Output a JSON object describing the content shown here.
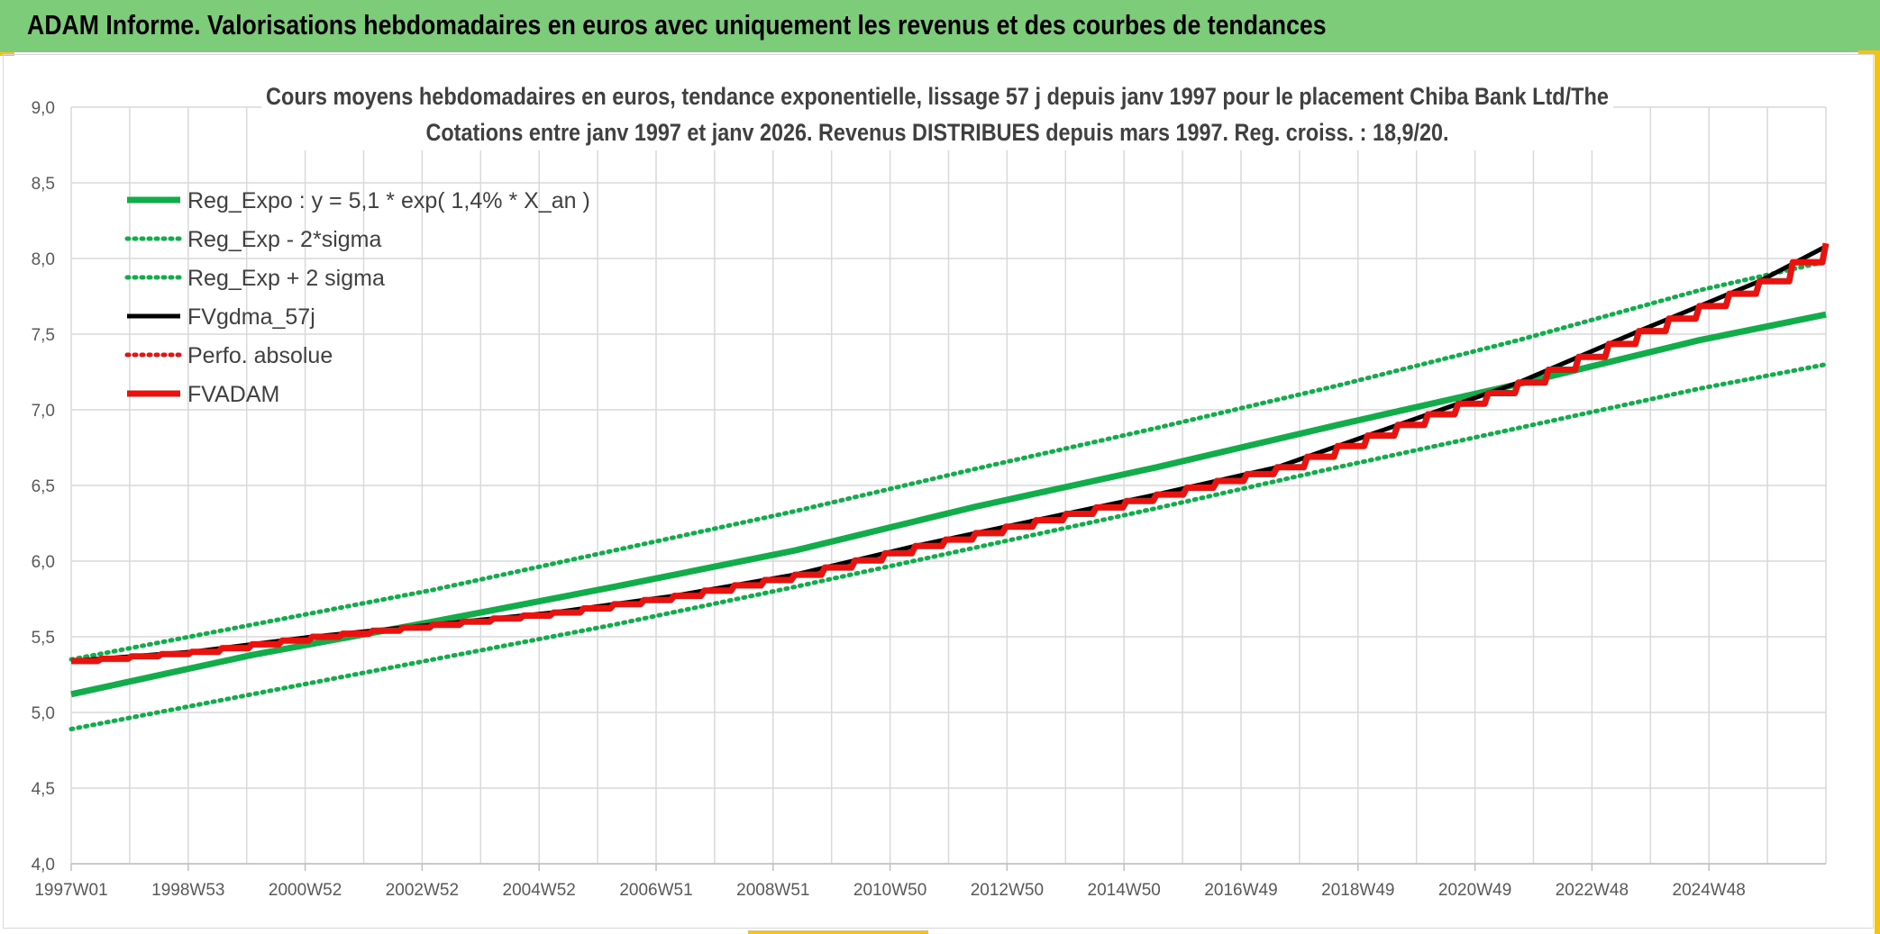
{
  "header": {
    "title": "ADAM Informe. Valorisations hebdomadaires en euros avec uniquement les revenus et des courbes de tendances"
  },
  "colors": {
    "header_bg": "#7ccc7a",
    "green": "#12ad4b",
    "black": "#000000",
    "red": "#e8120f",
    "grid": "#d9d9d9",
    "accent": "#f2c320"
  },
  "chart_data": {
    "type": "line",
    "title_lines": [
      "Cours moyens hebdomadaires en euros, tendance exponentielle, lissage 57 j depuis janv 1997 pour le placement Chiba Bank Ltd/The",
      "Cotations entre janv 1997 et janv 2026. Revenus DISTRIBUES depuis mars 1997. Reg. croiss. : 18,9/20."
    ],
    "ylim": [
      4.0,
      9.0
    ],
    "y_ticks": [
      "4,0",
      "4,5",
      "5,0",
      "5,5",
      "6,0",
      "6,5",
      "7,0",
      "7,5",
      "8,0",
      "8,5",
      "9,0"
    ],
    "x_range_years": [
      1997.0,
      2026.1
    ],
    "x_ticks": [
      "1997W01",
      "1998W53",
      "2000W52",
      "2002W52",
      "2004W52",
      "2006W51",
      "2008W51",
      "2010W50",
      "2012W50",
      "2014W50",
      "2016W49",
      "2018W49",
      "2020W49",
      "2022W48",
      "2024W48"
    ],
    "legend_position": "top-left",
    "grid": true,
    "series": [
      {
        "name": "Reg_Expo : y = 5,1 * exp( 1,4% *  X_an )",
        "style": "solid-thick",
        "color": "#12ad4b",
        "x": [
          1997.0,
          2000.0,
          2003.0,
          2006.0,
          2009.0,
          2012.0,
          2015.0,
          2018.0,
          2021.0,
          2024.0,
          2026.1
        ],
        "y": [
          5.12,
          5.38,
          5.6,
          5.83,
          6.07,
          6.36,
          6.62,
          6.9,
          7.17,
          7.46,
          7.63
        ]
      },
      {
        "name": "Reg_Exp - 2*sigma",
        "style": "dotted",
        "color": "#12ad4b",
        "x": [
          1997.0,
          2000.0,
          2003.0,
          2006.0,
          2009.0,
          2012.0,
          2015.0,
          2018.0,
          2021.0,
          2024.0,
          2026.1
        ],
        "y": [
          4.89,
          5.12,
          5.35,
          5.58,
          5.83,
          6.09,
          6.35,
          6.62,
          6.88,
          7.14,
          7.3
        ]
      },
      {
        "name": "Reg_Exp + 2 sigma",
        "style": "dotted",
        "color": "#12ad4b",
        "x": [
          1997.0,
          2000.0,
          2003.0,
          2006.0,
          2009.0,
          2012.0,
          2015.0,
          2018.0,
          2021.0,
          2024.0,
          2026.1
        ],
        "y": [
          5.35,
          5.58,
          5.81,
          6.07,
          6.33,
          6.61,
          6.88,
          7.16,
          7.46,
          7.79,
          7.98
        ]
      },
      {
        "name": "FVgdma_57j",
        "style": "solid",
        "color": "#000000",
        "x": [
          1997.0,
          1999.0,
          2001.0,
          2003.0,
          2005.0,
          2007.0,
          2009.0,
          2011.0,
          2013.0,
          2015.0,
          2017.0,
          2019.0,
          2021.0,
          2023.0,
          2025.0,
          2026.1
        ],
        "y": [
          5.34,
          5.4,
          5.5,
          5.58,
          5.66,
          5.77,
          5.91,
          6.1,
          6.27,
          6.44,
          6.62,
          6.9,
          7.18,
          7.52,
          7.85,
          8.08
        ]
      },
      {
        "name": "Perfo. absolue",
        "style": "dotted",
        "color": "#e8120f",
        "x": [],
        "y": []
      },
      {
        "name": "FVADAM",
        "style": "solid-thick-stepped",
        "color": "#e8120f",
        "x": [
          1997.0,
          1999.0,
          2001.0,
          2003.0,
          2005.0,
          2007.0,
          2009.0,
          2011.0,
          2013.0,
          2015.0,
          2017.0,
          2019.0,
          2021.0,
          2023.0,
          2025.0,
          2026.1
        ],
        "y": [
          5.34,
          5.4,
          5.5,
          5.58,
          5.66,
          5.77,
          5.91,
          6.1,
          6.27,
          6.44,
          6.62,
          6.9,
          7.18,
          7.52,
          7.85,
          8.1
        ]
      }
    ]
  }
}
